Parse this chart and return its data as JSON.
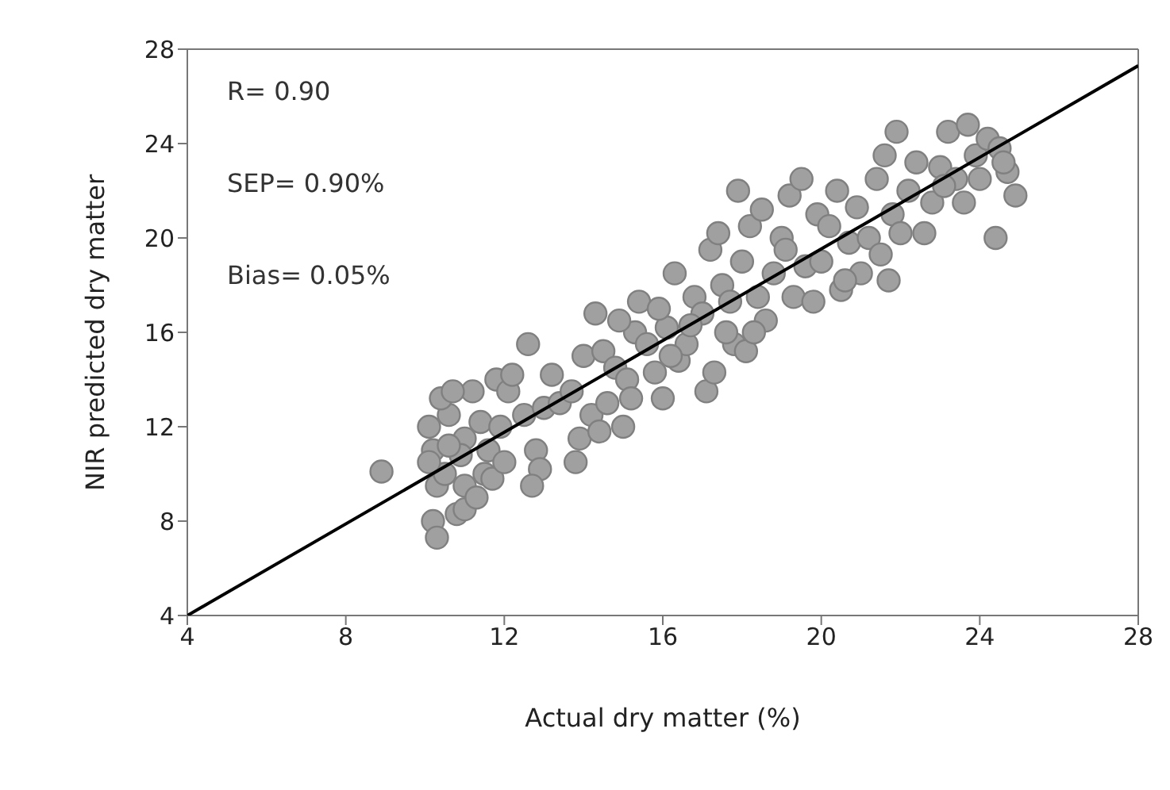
{
  "chart_data": {
    "type": "scatter",
    "xlabel": "Actual dry matter (%)",
    "ylabel": "NIR  predicted dry matter",
    "xlim": [
      4,
      28
    ],
    "xticks": [
      4,
      8,
      12,
      16,
      20,
      24,
      28
    ],
    "ylim": [
      4,
      28
    ],
    "yticks": [
      4,
      8,
      12,
      16,
      20,
      24,
      28
    ],
    "marker": "circle",
    "annotations": [
      "R= 0.90",
      "SEP= 0.90%",
      "Bias= 0.05%"
    ],
    "series": [
      {
        "type": "scatter",
        "color": "#a0a0a0",
        "x": [
          8.9,
          10.1,
          10.2,
          10.3,
          10.2,
          10.3,
          10.5,
          10.6,
          10.8,
          11,
          11,
          11.2,
          11.4,
          11.5,
          11,
          10.4,
          10.7,
          11.6,
          11.8,
          11.9,
          11.3,
          10.9,
          10.1,
          10.6,
          11.7,
          12,
          12.1,
          12.2,
          12.5,
          12.6,
          12.8,
          12.9,
          13,
          13.2,
          13.4,
          13.7,
          13.8,
          13.9,
          14,
          14.2,
          12.7,
          14.3,
          14.5,
          14.6,
          14.8,
          15,
          15.1,
          15.3,
          15.4,
          15.6,
          15.8,
          16,
          16.1,
          14.4,
          15.2,
          15.9,
          14.9,
          16.3,
          16.4,
          16.6,
          16.8,
          17,
          17.1,
          17.2,
          17.3,
          17.4,
          17.5,
          17.7,
          17.8,
          17.9,
          16.7,
          17.6,
          16.2,
          18,
          18.1,
          18.2,
          18.4,
          18.5,
          18.6,
          18.8,
          19,
          19.2,
          19.3,
          19.5,
          19.6,
          19.8,
          19.9,
          18.3,
          19.1,
          20,
          20.2,
          20.4,
          20.5,
          20.7,
          20.9,
          21,
          21.2,
          21.4,
          21.5,
          21.6,
          21.8,
          21.9,
          22,
          20.6,
          21.7,
          22.2,
          22.4,
          22.6,
          22.8,
          23,
          23.2,
          23.4,
          23.6,
          23.7,
          23.9,
          24,
          24.2,
          24.4,
          24.5,
          24.7,
          24.9,
          24.6,
          23.1
        ],
        "values": [
          10.1,
          12,
          11,
          9.5,
          8,
          7.3,
          10,
          12.5,
          8.3,
          9.5,
          11.5,
          13.5,
          12.2,
          10,
          8.5,
          13.2,
          13.5,
          11,
          14,
          12,
          9,
          10.8,
          10.5,
          11.2,
          9.8,
          10.5,
          13.5,
          14.2,
          12.5,
          15.5,
          11,
          10.2,
          12.8,
          14.2,
          13,
          13.5,
          10.5,
          11.5,
          15,
          12.5,
          9.5,
          16.8,
          15.2,
          13,
          14.5,
          12,
          14,
          16,
          17.3,
          15.5,
          14.3,
          13.2,
          16.2,
          11.8,
          13.2,
          17,
          16.5,
          18.5,
          14.8,
          15.5,
          17.5,
          16.8,
          13.5,
          19.5,
          14.3,
          20.2,
          18,
          17.3,
          15.5,
          22,
          16.3,
          16,
          15,
          19,
          15.2,
          20.5,
          17.5,
          21.2,
          16.5,
          18.5,
          20,
          21.8,
          17.5,
          22.5,
          18.8,
          17.3,
          21,
          16,
          19.5,
          19,
          20.5,
          22,
          17.8,
          19.8,
          21.3,
          18.5,
          20,
          22.5,
          19.3,
          23.5,
          21,
          24.5,
          20.2,
          18.2,
          18.2,
          22,
          23.2,
          20.2,
          21.5,
          23,
          24.5,
          22.5,
          21.5,
          24.8,
          23.5,
          22.5,
          24.2,
          20,
          23.8,
          22.8,
          21.8,
          23.2,
          22.2
        ]
      },
      {
        "type": "line",
        "color": "#000000",
        "marker": "none",
        "x": [
          4,
          28
        ],
        "values": [
          4,
          27.3
        ]
      }
    ]
  }
}
